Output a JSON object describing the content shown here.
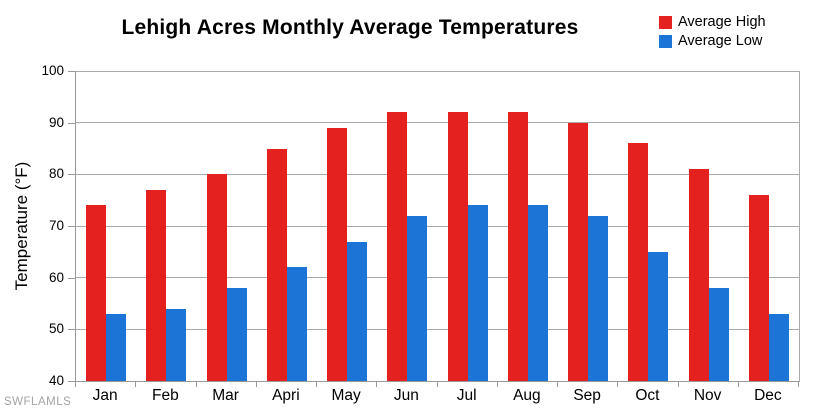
{
  "title": "Lehigh Acres Monthly Average Temperatures",
  "watermark": "SWFLAMLS",
  "colors": {
    "average_high": "#e4211f",
    "average_low": "#1b74d6",
    "grid": "#aaaaaa",
    "axis": "#999999"
  },
  "chart_data": {
    "type": "bar",
    "title": "Lehigh Acres Monthly Average Temperatures",
    "categories": [
      "Jan",
      "Feb",
      "Mar",
      "Apri",
      "May",
      "Jun",
      "Jul",
      "Aug",
      "Sep",
      "Oct",
      "Nov",
      "Dec"
    ],
    "series": [
      {
        "name": "Average High",
        "color": "#e4211f",
        "values": [
          74,
          77,
          80,
          85,
          89,
          92,
          92,
          92,
          90,
          86,
          81,
          76
        ]
      },
      {
        "name": "Average Low",
        "color": "#1b74d6",
        "values": [
          53,
          54,
          58,
          62,
          67,
          72,
          74,
          74,
          72,
          65,
          58,
          53
        ]
      }
    ],
    "xlabel": "",
    "ylabel": "Temperature (°F)",
    "ylim": [
      40,
      100
    ],
    "yticks": [
      40,
      50,
      60,
      70,
      80,
      90,
      100
    ],
    "grid": "horizontal",
    "legend_position": "top-right"
  }
}
